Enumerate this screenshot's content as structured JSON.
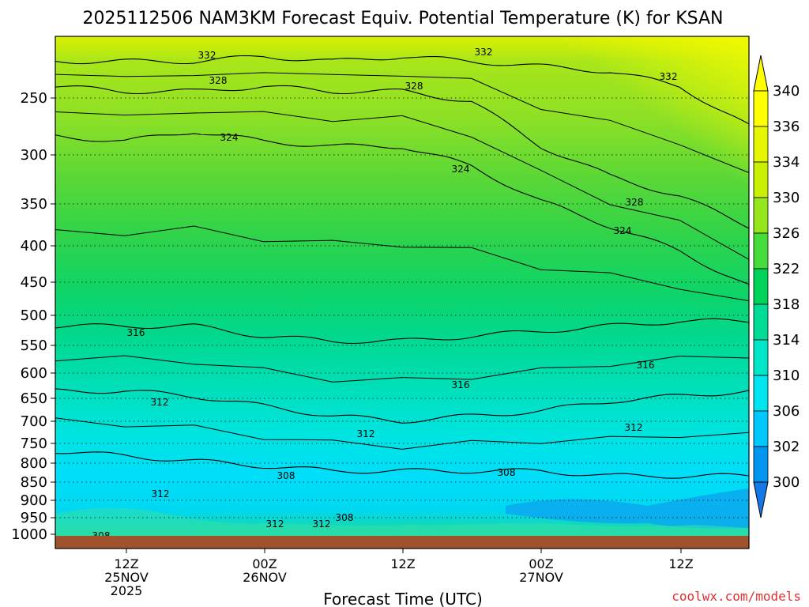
{
  "chart_data": {
    "type": "heatmap",
    "title": "2025112506 NAM3KM Forecast Equiv. Potential Temperature (K) for KSAN",
    "xlabel": "Forecast Time (UTC)",
    "ylabel": "",
    "y_ticks": [
      "250",
      "300",
      "350",
      "400",
      "450",
      "500",
      "550",
      "600",
      "650",
      "700",
      "750",
      "800",
      "850",
      "900",
      "950",
      "1000"
    ],
    "x_ticks": [
      {
        "line1": "12Z",
        "line2": "25NOV",
        "line3": "2025"
      },
      {
        "line1": "00Z",
        "line2": "26NOV",
        "line3": ""
      },
      {
        "line1": "12Z",
        "line2": "",
        "line3": ""
      },
      {
        "line1": "00Z",
        "line2": "27NOV",
        "line3": ""
      },
      {
        "line1": "12Z",
        "line2": "",
        "line3": ""
      }
    ],
    "colorbar": {
      "levels": [
        "340",
        "336",
        "334",
        "330",
        "326",
        "322",
        "318",
        "314",
        "310",
        "306",
        "302",
        "300"
      ],
      "colors": [
        "#ffff00",
        "#e6f500",
        "#c8f000",
        "#96e61e",
        "#46dc3c",
        "#00d25a",
        "#00dc96",
        "#00e6c8",
        "#00e6f0",
        "#00c8ff",
        "#0096f0",
        "#1478e6"
      ]
    },
    "contour_labels": [
      "332",
      "332",
      "332",
      "328",
      "328",
      "328",
      "324",
      "324",
      "324",
      "316",
      "316",
      "316",
      "312",
      "312",
      "312",
      "312",
      "312",
      "312",
      "308",
      "308",
      "308",
      "308"
    ],
    "series": [
      {
        "name": "332",
        "values": [
          [
            0,
            0.95
          ],
          [
            0.1,
            0.95
          ],
          [
            0.2,
            0.95
          ],
          [
            0.3,
            0.96
          ],
          [
            0.4,
            0.95
          ],
          [
            0.5,
            0.96
          ],
          [
            0.6,
            0.95
          ],
          [
            0.7,
            0.94
          ],
          [
            0.8,
            0.93
          ],
          [
            0.9,
            0.9
          ],
          [
            1,
            0.82
          ]
        ]
      },
      {
        "name": "328",
        "values": [
          [
            0,
            0.9
          ],
          [
            0.1,
            0.89
          ],
          [
            0.2,
            0.89
          ],
          [
            0.3,
            0.9
          ],
          [
            0.4,
            0.89
          ],
          [
            0.5,
            0.89
          ],
          [
            0.6,
            0.87
          ],
          [
            0.7,
            0.78
          ],
          [
            0.8,
            0.72
          ],
          [
            0.9,
            0.68
          ],
          [
            1,
            0.62
          ]
        ]
      },
      {
        "name": "324",
        "values": [
          [
            0,
            0.8
          ],
          [
            0.1,
            0.79
          ],
          [
            0.2,
            0.81
          ],
          [
            0.3,
            0.79
          ],
          [
            0.4,
            0.78
          ],
          [
            0.5,
            0.78
          ],
          [
            0.6,
            0.74
          ],
          [
            0.7,
            0.67
          ],
          [
            0.8,
            0.62
          ],
          [
            0.9,
            0.57
          ],
          [
            1,
            0.5
          ]
        ]
      },
      {
        "name": "316",
        "values": [
          [
            0,
            0.42
          ],
          [
            0.1,
            0.42
          ],
          [
            0.2,
            0.42
          ],
          [
            0.3,
            0.4
          ],
          [
            0.4,
            0.39
          ],
          [
            0.5,
            0.39
          ],
          [
            0.6,
            0.4
          ],
          [
            0.7,
            0.41
          ],
          [
            0.8,
            0.42
          ],
          [
            0.9,
            0.43
          ],
          [
            1,
            0.43
          ]
        ]
      },
      {
        "name": "312",
        "values": [
          [
            0,
            0.29
          ],
          [
            0.1,
            0.29
          ],
          [
            0.2,
            0.28
          ],
          [
            0.3,
            0.26
          ],
          [
            0.4,
            0.24
          ],
          [
            0.5,
            0.23
          ],
          [
            0.6,
            0.24
          ],
          [
            0.7,
            0.25
          ],
          [
            0.8,
            0.27
          ],
          [
            0.9,
            0.28
          ],
          [
            1,
            0.29
          ]
        ]
      },
      {
        "name": "308",
        "values": [
          [
            0,
            0.17
          ],
          [
            0.1,
            0.16
          ],
          [
            0.2,
            0.15
          ],
          [
            0.3,
            0.14
          ],
          [
            0.4,
            0.13
          ],
          [
            0.5,
            0.13
          ],
          [
            0.6,
            0.13
          ],
          [
            0.7,
            0.13
          ],
          [
            0.8,
            0.12
          ],
          [
            0.9,
            0.12
          ],
          [
            1,
            0.12
          ]
        ]
      }
    ]
  },
  "watermark": "coolwx.com/models"
}
